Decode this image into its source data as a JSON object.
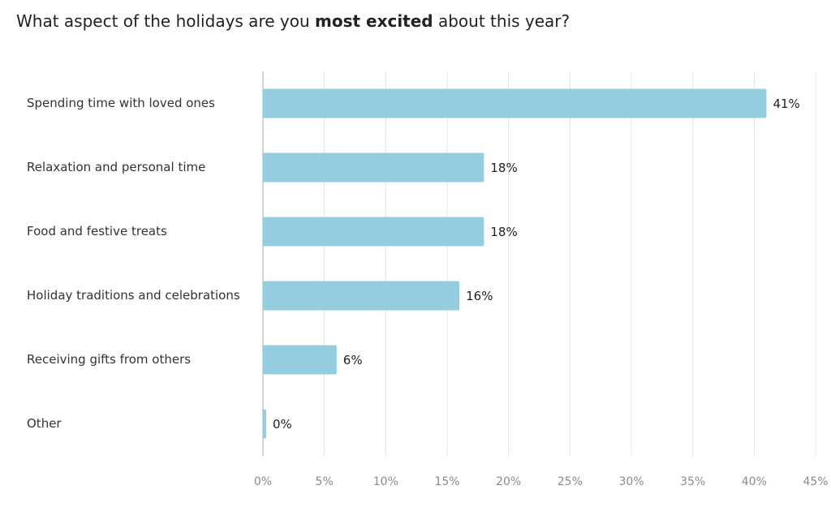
{
  "chart_data": {
    "type": "bar",
    "orientation": "horizontal",
    "title_parts": [
      "What aspect of the holidays are you ",
      "most excited",
      " about this year?"
    ],
    "categories": [
      "Spending time with loved ones",
      "Relaxation and personal time",
      "Food and festive treats",
      "Holiday traditions and celebrations",
      "Receiving gifts from others",
      "Other"
    ],
    "values": [
      41,
      18,
      18,
      16,
      6,
      0
    ],
    "value_labels": [
      "41%",
      "18%",
      "18%",
      "16%",
      "6%",
      "0%"
    ],
    "color": "#94cde0",
    "xlim": [
      0,
      45
    ],
    "xticks": [
      {
        "value": 0,
        "label": "0%"
      },
      {
        "value": 5,
        "label": "5%"
      },
      {
        "value": 10,
        "label": "10%"
      },
      {
        "value": 15,
        "label": "15%"
      },
      {
        "value": 20,
        "label": "20%"
      },
      {
        "value": 25,
        "label": "25%"
      },
      {
        "value": 30,
        "label": "30%"
      },
      {
        "value": 35,
        "label": "35%"
      },
      {
        "value": 40,
        "label": "40%"
      },
      {
        "value": 45,
        "label": "45%"
      }
    ],
    "grid": true
  }
}
